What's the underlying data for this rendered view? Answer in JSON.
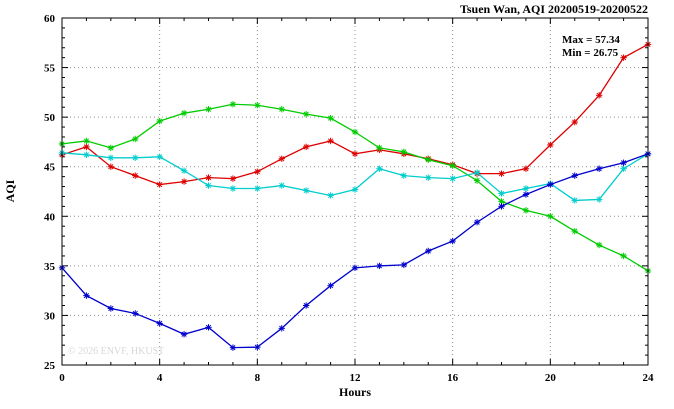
{
  "window_title": "Tsuen Wan, AQI 20200519-20200522",
  "chart_data": {
    "type": "line",
    "title": "Tsuen Wan, AQI 20200519-20200522",
    "xlabel": "Hours",
    "ylabel": "AQI",
    "xlim": [
      0,
      24
    ],
    "ylim": [
      25,
      60
    ],
    "xticks": [
      0,
      4,
      8,
      12,
      16,
      20,
      24
    ],
    "yticks": [
      25,
      30,
      35,
      40,
      45,
      50,
      55,
      60
    ],
    "minor_x_step": 1,
    "minor_y_step": 1,
    "grid": true,
    "grid_style": "dotted",
    "marker": "asterisk",
    "legend_position": "none",
    "x": [
      0,
      1,
      2,
      3,
      4,
      5,
      6,
      7,
      8,
      9,
      10,
      11,
      12,
      13,
      14,
      15,
      16,
      17,
      18,
      19,
      20,
      21,
      22,
      23,
      24
    ],
    "series": [
      {
        "name": "red",
        "color": "#dd0000",
        "values": [
          46.2,
          47.0,
          45.0,
          44.1,
          43.2,
          43.5,
          43.9,
          43.8,
          44.5,
          45.8,
          47.0,
          47.6,
          46.3,
          46.7,
          46.3,
          45.8,
          45.2,
          44.3,
          44.3,
          44.8,
          47.2,
          49.5,
          52.2,
          56.0,
          57.34
        ]
      },
      {
        "name": "green",
        "color": "#00cc00",
        "values": [
          47.3,
          47.6,
          46.9,
          47.8,
          49.6,
          50.4,
          50.8,
          51.3,
          51.2,
          50.8,
          50.3,
          49.9,
          48.5,
          46.9,
          46.5,
          45.7,
          45.1,
          43.6,
          41.5,
          40.6,
          40.0,
          38.5,
          37.1,
          36.0,
          34.5
        ]
      },
      {
        "name": "cyan",
        "color": "#00cdcd",
        "values": [
          46.4,
          46.2,
          45.9,
          45.9,
          46.0,
          44.6,
          43.1,
          42.8,
          42.8,
          43.1,
          42.6,
          42.1,
          42.7,
          44.8,
          44.1,
          43.9,
          43.8,
          44.4,
          42.3,
          42.8,
          43.3,
          41.6,
          41.7,
          44.8,
          46.3
        ]
      },
      {
        "name": "blue",
        "color": "#0000cd",
        "values": [
          34.8,
          32.0,
          30.7,
          30.2,
          29.2,
          28.1,
          28.8,
          26.75,
          26.8,
          28.7,
          31.0,
          33.0,
          34.8,
          35.0,
          35.1,
          36.5,
          37.5,
          39.4,
          41.0,
          42.2,
          43.2,
          44.1,
          44.8,
          45.4,
          46.3
        ]
      }
    ],
    "annotations": [
      "Max = 57.34",
      "Min = 26.75"
    ],
    "stats": {
      "max": 57.34,
      "min": 26.75
    },
    "watermark": "© 2026 ENVF, HKUST",
    "colors": {
      "axis": "#000000",
      "grid": "#909090",
      "watermark": "#d8d8d8"
    }
  }
}
